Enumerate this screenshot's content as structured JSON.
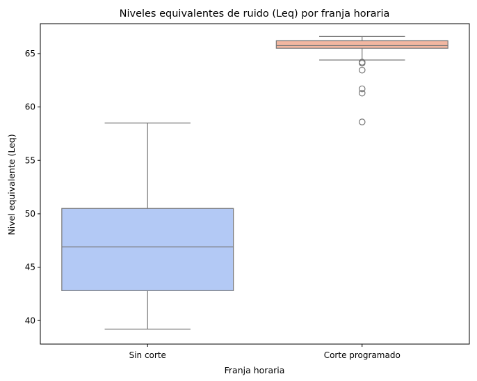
{
  "chart_data": {
    "type": "box",
    "title": "Niveles equivalentes de ruido (Leq) por franja horaria",
    "xlabel": "Franja horaria",
    "ylabel": "Nivel equivalente (Leq)",
    "ylim": [
      37.8,
      67.8
    ],
    "yticks": [
      40,
      45,
      50,
      55,
      60,
      65
    ],
    "grid": false,
    "categories": [
      "Sin corte",
      "Corte programado"
    ],
    "boxes": [
      {
        "category": "Sin corte",
        "whisker_low": 39.2,
        "q1": 42.8,
        "median": 46.9,
        "q3": 50.5,
        "whisker_high": 58.5,
        "outliers": [],
        "color": "#b3c9f5"
      },
      {
        "category": "Corte programado",
        "whisker_low": 64.4,
        "q1": 65.5,
        "median": 65.75,
        "q3": 66.2,
        "whisker_high": 66.6,
        "outliers": [
          64.2,
          64.1,
          63.45,
          61.7,
          61.3,
          58.6
        ],
        "color": "#f2b7a1"
      }
    ],
    "line_color": "#777777"
  }
}
